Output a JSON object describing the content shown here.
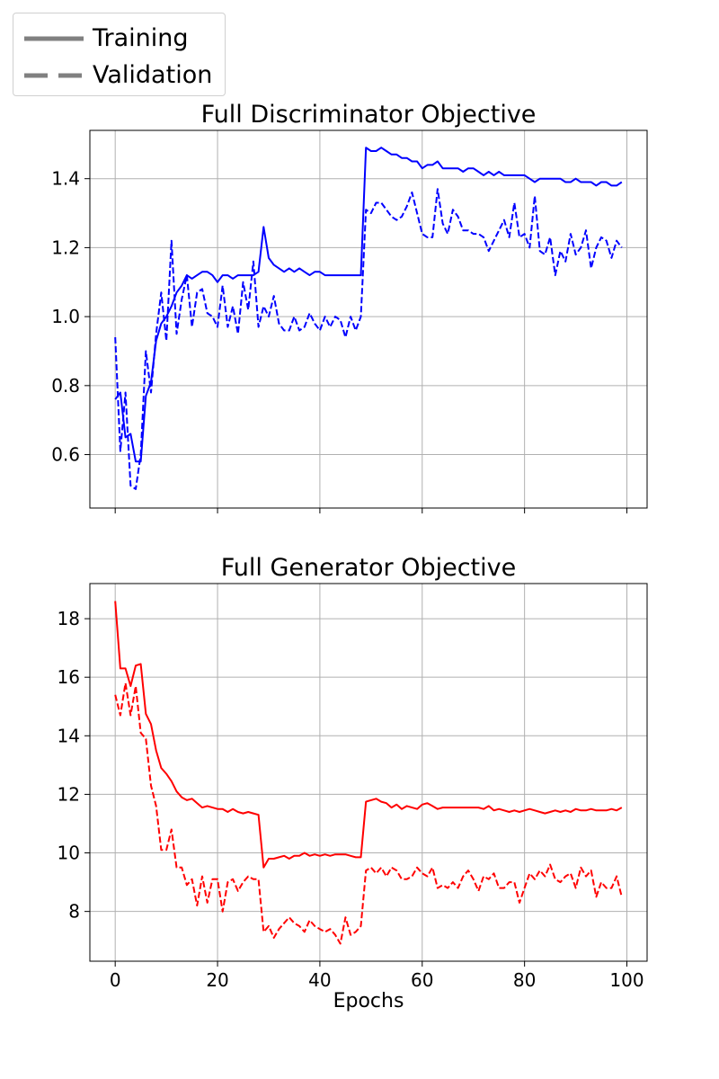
{
  "legend": {
    "position": "top-left",
    "items": [
      {
        "label": "Training",
        "style": "solid",
        "color": "#808080"
      },
      {
        "label": "Validation",
        "style": "dashed",
        "color": "#808080"
      }
    ]
  },
  "shared_xlabel": "Epochs",
  "chart_data": [
    {
      "type": "line",
      "title": "Full Discriminator Objective",
      "xlabel": "",
      "ylabel": "",
      "xlim": [
        -4.95,
        103.95
      ],
      "ylim": [
        0.445,
        1.54
      ],
      "xticks": [
        0,
        20,
        40,
        60,
        80,
        100
      ],
      "xtick_labels_shown": false,
      "yticks": [
        0.6,
        0.8,
        1.0,
        1.2,
        1.4
      ],
      "ytick_labels": [
        "0.6",
        "0.8",
        "1.0",
        "1.2",
        "1.4"
      ],
      "grid": true,
      "color": "#0000ff",
      "series": [
        {
          "name": "Training",
          "style": "solid",
          "values": [
            0.76,
            0.78,
            0.65,
            0.66,
            0.58,
            0.58,
            0.77,
            0.81,
            0.93,
            0.98,
            1.0,
            1.03,
            1.07,
            1.09,
            1.12,
            1.11,
            1.12,
            1.13,
            1.13,
            1.12,
            1.1,
            1.12,
            1.12,
            1.11,
            1.12,
            1.12,
            1.12,
            1.12,
            1.13,
            1.26,
            1.17,
            1.15,
            1.14,
            1.13,
            1.14,
            1.13,
            1.14,
            1.13,
            1.12,
            1.13,
            1.13,
            1.12,
            1.12,
            1.12,
            1.12,
            1.12,
            1.12,
            1.12,
            1.12,
            1.49,
            1.48,
            1.48,
            1.49,
            1.48,
            1.47,
            1.47,
            1.46,
            1.46,
            1.45,
            1.45,
            1.43,
            1.44,
            1.44,
            1.45,
            1.43,
            1.43,
            1.43,
            1.43,
            1.42,
            1.43,
            1.43,
            1.42,
            1.41,
            1.42,
            1.41,
            1.42,
            1.41,
            1.41,
            1.41,
            1.41,
            1.41,
            1.4,
            1.39,
            1.4,
            1.4,
            1.4,
            1.4,
            1.4,
            1.39,
            1.39,
            1.4,
            1.39,
            1.39,
            1.39,
            1.38,
            1.39,
            1.39,
            1.38,
            1.38,
            1.39
          ]
        },
        {
          "name": "Validation",
          "style": "dashed",
          "values": [
            0.94,
            0.61,
            0.78,
            0.51,
            0.5,
            0.6,
            0.9,
            0.78,
            0.95,
            1.07,
            0.93,
            1.22,
            0.95,
            1.05,
            1.12,
            0.97,
            1.07,
            1.08,
            1.01,
            1.0,
            0.97,
            1.09,
            0.97,
            1.03,
            0.95,
            1.1,
            1.02,
            1.16,
            0.97,
            1.03,
            1.0,
            1.06,
            0.98,
            0.96,
            0.96,
            1.0,
            0.96,
            0.97,
            1.01,
            0.98,
            0.96,
            1.0,
            0.97,
            1.0,
            0.99,
            0.94,
            1.0,
            0.96,
            1.0,
            1.31,
            1.3,
            1.33,
            1.33,
            1.31,
            1.29,
            1.28,
            1.29,
            1.32,
            1.36,
            1.3,
            1.24,
            1.23,
            1.23,
            1.37,
            1.27,
            1.24,
            1.31,
            1.29,
            1.25,
            1.25,
            1.24,
            1.24,
            1.23,
            1.19,
            1.22,
            1.25,
            1.28,
            1.23,
            1.33,
            1.23,
            1.24,
            1.2,
            1.35,
            1.19,
            1.18,
            1.23,
            1.12,
            1.19,
            1.16,
            1.24,
            1.18,
            1.2,
            1.25,
            1.14,
            1.2,
            1.23,
            1.22,
            1.17,
            1.22,
            1.2
          ]
        }
      ]
    },
    {
      "type": "line",
      "title": "Full Generator Objective",
      "xlabel": "Epochs",
      "ylabel": "",
      "xlim": [
        -4.95,
        103.95
      ],
      "ylim": [
        6.3,
        19.2
      ],
      "xticks": [
        0,
        20,
        40,
        60,
        80,
        100
      ],
      "xtick_labels": [
        "0",
        "20",
        "40",
        "60",
        "80",
        "100"
      ],
      "yticks": [
        8,
        10,
        12,
        14,
        16,
        18
      ],
      "ytick_labels": [
        "8",
        "10",
        "12",
        "14",
        "16",
        "18"
      ],
      "grid": true,
      "color": "#ff0000",
      "series": [
        {
          "name": "Training",
          "style": "solid",
          "values": [
            18.6,
            16.3,
            16.3,
            15.7,
            16.4,
            16.45,
            14.75,
            14.4,
            13.5,
            12.9,
            12.7,
            12.45,
            12.1,
            11.9,
            11.8,
            11.85,
            11.7,
            11.55,
            11.6,
            11.55,
            11.5,
            11.5,
            11.4,
            11.5,
            11.4,
            11.35,
            11.4,
            11.35,
            11.3,
            9.5,
            9.8,
            9.8,
            9.85,
            9.9,
            9.8,
            9.9,
            9.9,
            10.0,
            9.9,
            9.95,
            9.9,
            9.95,
            9.9,
            9.95,
            9.95,
            9.95,
            9.9,
            9.85,
            9.85,
            11.75,
            11.8,
            11.85,
            11.75,
            11.7,
            11.55,
            11.65,
            11.5,
            11.6,
            11.55,
            11.5,
            11.65,
            11.7,
            11.6,
            11.5,
            11.55,
            11.55,
            11.55,
            11.55,
            11.55,
            11.55,
            11.55,
            11.55,
            11.5,
            11.6,
            11.45,
            11.5,
            11.45,
            11.4,
            11.45,
            11.4,
            11.45,
            11.5,
            11.45,
            11.4,
            11.35,
            11.4,
            11.45,
            11.4,
            11.45,
            11.4,
            11.5,
            11.45,
            11.45,
            11.5,
            11.45,
            11.45,
            11.45,
            11.5,
            11.45,
            11.55
          ]
        },
        {
          "name": "Validation",
          "style": "dashed",
          "values": [
            15.4,
            14.7,
            15.8,
            14.7,
            15.7,
            14.1,
            13.9,
            12.3,
            11.6,
            10.1,
            10.1,
            10.8,
            9.5,
            9.5,
            8.9,
            9.1,
            8.2,
            9.2,
            8.3,
            9.1,
            9.1,
            8.0,
            9.0,
            9.1,
            8.7,
            9.0,
            9.2,
            9.1,
            9.1,
            7.3,
            7.5,
            7.1,
            7.4,
            7.6,
            7.8,
            7.6,
            7.5,
            7.3,
            7.7,
            7.5,
            7.4,
            7.3,
            7.4,
            7.2,
            6.9,
            7.8,
            7.2,
            7.3,
            7.5,
            9.4,
            9.5,
            9.3,
            9.5,
            9.2,
            9.5,
            9.4,
            9.1,
            9.1,
            9.2,
            9.5,
            9.3,
            9.2,
            9.5,
            8.8,
            8.9,
            8.8,
            9.0,
            8.8,
            9.2,
            9.4,
            9.1,
            8.7,
            9.2,
            9.1,
            9.3,
            8.8,
            8.8,
            9.0,
            9.0,
            8.3,
            8.8,
            9.3,
            9.1,
            9.4,
            9.2,
            9.6,
            9.1,
            9.0,
            9.2,
            9.3,
            8.8,
            9.5,
            9.2,
            9.4,
            8.5,
            9.0,
            8.8,
            8.8,
            9.2,
            8.5
          ]
        }
      ]
    }
  ]
}
